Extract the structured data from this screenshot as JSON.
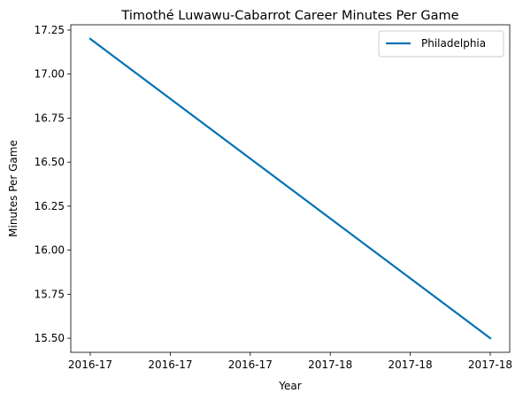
{
  "chart_data": {
    "type": "line",
    "title": "Timothé Luwawu-Cabarrot Career Minutes Per Game",
    "xlabel": "Year",
    "ylabel": "Minutes Per Game",
    "x_tick_labels": [
      "2016-17",
      "2016-17",
      "2016-17",
      "2017-18",
      "2017-18",
      "2017-18"
    ],
    "ylim": [
      15.42,
      17.28
    ],
    "y_ticks": [
      "15.50",
      "15.75",
      "16.00",
      "16.25",
      "16.50",
      "16.75",
      "17.00",
      "17.25"
    ],
    "grid": false,
    "legend_position": "top-right",
    "series": [
      {
        "name": "Philadelphia",
        "color": "#0072b2",
        "x": [
          "2016-17",
          "2017-18"
        ],
        "values": [
          17.2,
          15.5
        ]
      }
    ]
  }
}
